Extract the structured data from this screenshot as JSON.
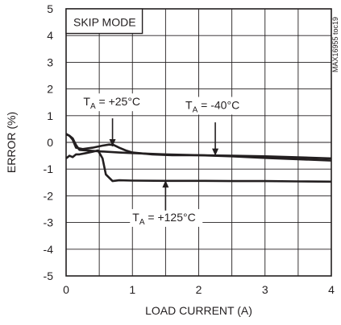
{
  "chart_data": {
    "type": "line",
    "xlabel": "LOAD CURRENT (A)",
    "ylabel": "ERROR (%)",
    "xlim": [
      0,
      4
    ],
    "ylim": [
      -5,
      5
    ],
    "x_ticks": [
      "0",
      "1",
      "2",
      "3",
      "4"
    ],
    "y_ticks": [
      "5",
      "4",
      "3",
      "2",
      "1",
      "0",
      "-1",
      "-2",
      "-3",
      "-4",
      "-5"
    ],
    "grid": true,
    "mode_label": "SKIP MODE",
    "figure_id": "MAX16955 toc19",
    "series": [
      {
        "name": "TA = +25°C",
        "x": [
          0,
          0.05,
          0.1,
          0.15,
          0.25,
          0.4,
          0.55,
          0.65,
          0.72,
          0.8,
          0.9,
          1.0,
          1.3,
          1.6,
          2.0,
          2.5,
          3.0,
          3.5,
          4.0
        ],
        "y": [
          0.3,
          0.25,
          0.1,
          -0.2,
          -0.25,
          -0.2,
          -0.12,
          -0.08,
          -0.1,
          -0.2,
          -0.3,
          -0.38,
          -0.45,
          -0.48,
          -0.48,
          -0.5,
          -0.52,
          -0.56,
          -0.6
        ]
      },
      {
        "name": "TA = -40°C",
        "x": [
          0,
          0.05,
          0.1,
          0.15,
          0.2,
          0.4,
          0.6,
          0.8,
          1.0,
          1.5,
          2.0,
          2.5,
          3.0,
          3.5,
          4.0
        ],
        "y": [
          0.32,
          0.25,
          0.15,
          -0.1,
          -0.28,
          -0.32,
          -0.35,
          -0.38,
          -0.4,
          -0.45,
          -0.48,
          -0.52,
          -0.58,
          -0.63,
          -0.68
        ]
      },
      {
        "name": "TA = +125°C",
        "x": [
          0,
          0.05,
          0.1,
          0.15,
          0.2,
          0.3,
          0.4,
          0.48,
          0.55,
          0.6,
          0.7,
          0.8,
          1.0,
          1.5,
          2.0,
          2.5,
          3.0,
          3.5,
          4.0
        ],
        "y": [
          -0.6,
          -0.5,
          -0.55,
          -0.45,
          -0.45,
          -0.4,
          -0.35,
          -0.3,
          -0.6,
          -1.2,
          -1.45,
          -1.42,
          -1.43,
          -1.44,
          -1.44,
          -1.45,
          -1.45,
          -1.46,
          -1.47
        ]
      }
    ],
    "annotations": [
      {
        "sub": "A",
        "text": " = +25°C",
        "series": "TA = +25°C"
      },
      {
        "sub": "A",
        "text": " = -40°C",
        "series": "TA = -40°C"
      },
      {
        "sub": "A",
        "text": " = +125°C",
        "series": "TA = +125°C"
      }
    ]
  }
}
